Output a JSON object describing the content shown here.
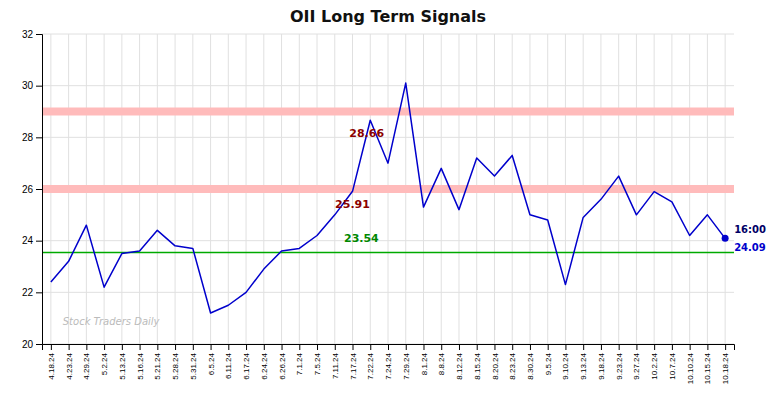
{
  "chart_data": {
    "type": "line",
    "title": "OII Long Term Signals",
    "categories": [
      "4.18.24",
      "4.23.24",
      "4.29.24",
      "5.2.24",
      "5.13.24",
      "5.16.24",
      "5.21.24",
      "5.28.24",
      "5.31.24",
      "6.5.24",
      "6.11.24",
      "6.17.24",
      "6.24.24",
      "6.26.24",
      "7.1.24",
      "7.5.24",
      "7.11.24",
      "7.17.24",
      "7.22.24",
      "7.24.24",
      "7.29.24",
      "8.1.24",
      "8.8.24",
      "8.12.24",
      "8.15.24",
      "8.20.24",
      "8.23.24",
      "8.30.24",
      "9.5.24",
      "9.10.24",
      "9.13.24",
      "9.18.24",
      "9.23.24",
      "9.27.24",
      "10.2.24",
      "10.7.24",
      "10.10.24",
      "10.15.24",
      "10.18.24"
    ],
    "values": [
      22.4,
      23.2,
      24.6,
      22.2,
      23.5,
      23.6,
      24.4,
      23.8,
      23.7,
      21.2,
      21.5,
      22.0,
      22.9,
      23.6,
      23.7,
      24.2,
      25.0,
      25.91,
      28.66,
      27.0,
      30.1,
      25.3,
      26.8,
      25.2,
      27.2,
      26.5,
      27.3,
      25.0,
      24.8,
      22.3,
      24.9,
      25.6,
      26.5,
      25.0,
      25.9,
      25.5,
      24.2,
      25.0,
      24.09
    ],
    "color": "#0000cc",
    "ylim": [
      20,
      32
    ],
    "yticks": [
      20,
      22,
      24,
      26,
      28,
      30,
      32
    ],
    "grid": true,
    "hlines": [
      {
        "value": 29.0,
        "color": "#ffbbbb",
        "line_style": "band"
      },
      {
        "value": 26.0,
        "color": "#ffbbbb",
        "line_style": "band"
      },
      {
        "value": 23.54,
        "color": "#00aa00",
        "line_style": "solid"
      }
    ],
    "annotations": [
      {
        "text": "28.66",
        "x": 17.8,
        "y": 28.0,
        "color": "#8b0000"
      },
      {
        "text": "25.91",
        "x": 17.0,
        "y": 25.25,
        "color": "#8b0000"
      },
      {
        "text": "23.54",
        "x": 17.5,
        "y": 23.95,
        "color": "#008800"
      },
      {
        "text": "16:00",
        "color": "#000066"
      },
      {
        "text": "24.09",
        "color": "#0000cc"
      }
    ],
    "watermark": "Stock Traders Daily"
  }
}
